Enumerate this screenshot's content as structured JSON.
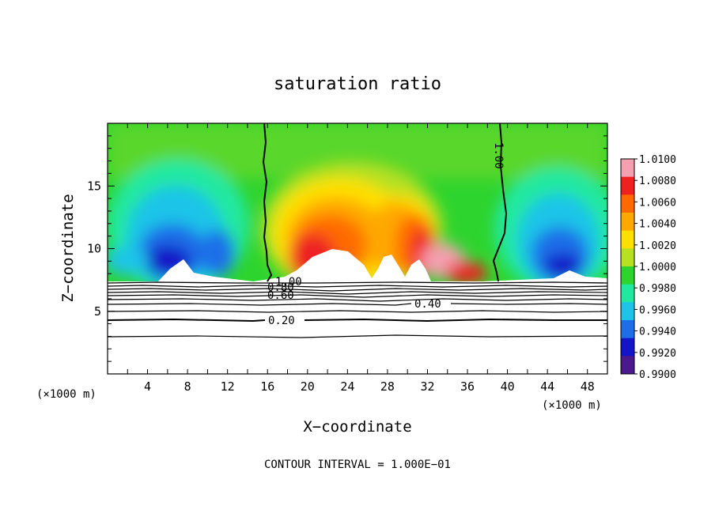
{
  "chart_data": {
    "type": "heatmap",
    "title": "saturation ratio",
    "xlabel": "X−coordinate",
    "ylabel": "Z−coordinate",
    "x_unit": "(×1000 m)",
    "y_unit": "(×1000 m)",
    "xlim": [
      0,
      50
    ],
    "ylim": [
      0,
      20
    ],
    "x_ticks": [
      4,
      8,
      12,
      16,
      20,
      24,
      28,
      32,
      36,
      40,
      44,
      48
    ],
    "y_ticks": [
      5,
      10,
      15
    ],
    "colorbar": {
      "levels": [
        "1.0100",
        "1.0080",
        "1.0060",
        "1.0040",
        "1.0020",
        "1.0000",
        "0.9980",
        "0.9960",
        "0.9940",
        "0.9920",
        "0.9900"
      ],
      "colors": [
        "#f4a0b0",
        "#ee2020",
        "#ff6a00",
        "#ffa800",
        "#ffe000",
        "#b6e020",
        "#2ed42e",
        "#20e8a0",
        "#1ec4e8",
        "#1e6ee8",
        "#1414c8",
        "#4a1a8c"
      ],
      "range": [
        0.99,
        1.01
      ]
    },
    "contour_interval_text": "CONTOUR INTERVAL = 1.000E−01",
    "contour_labels": [
      "1.00",
      "1.00",
      "0.80",
      "0.60",
      "0.40",
      "0.20"
    ],
    "contour_levels": [
      0.2,
      0.3,
      0.4,
      0.5,
      0.6,
      0.7,
      0.8,
      0.9,
      1.0
    ]
  }
}
